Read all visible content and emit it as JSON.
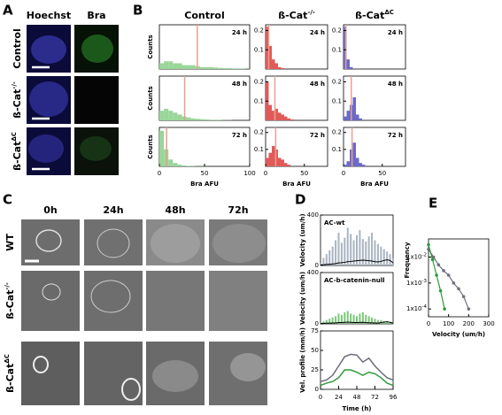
{
  "panel_a": {
    "label": "A",
    "columns": [
      "Hoechst",
      "Bra"
    ],
    "rows": [
      {
        "base": "Control"
      },
      {
        "base": "ß-Cat",
        "sup": "-/-"
      },
      {
        "base": "ß-Cat",
        "sup": "ΔC"
      }
    ]
  },
  "panel_b": {
    "label": "B",
    "ylabel": "Counts",
    "xlabel": "Bra AFU",
    "times": [
      "24 h",
      "48 h",
      "72 h"
    ],
    "columns": [
      {
        "title": {
          "base": "Control"
        },
        "color": "#9ad69a",
        "xlim": [
          0,
          100
        ],
        "xticks": [
          0,
          50,
          100
        ],
        "ylim": [
          0,
          0.23
        ],
        "yticks": [],
        "bins": [
          0,
          5,
          10,
          15,
          20,
          25,
          30,
          35,
          40,
          45,
          50,
          55,
          60,
          65,
          70,
          75,
          80,
          85,
          90,
          95,
          100
        ],
        "counts": [
          [
            0.03,
            0.04,
            0.04,
            0.03,
            0.03,
            0.02,
            0.02,
            0.02,
            0.015,
            0.01,
            0.01,
            0.01,
            0.008,
            0.006,
            0.005,
            0.004,
            0.003,
            0.002,
            0.002,
            0.001
          ],
          [
            0.05,
            0.06,
            0.05,
            0.04,
            0.03,
            0.02,
            0.015,
            0.01,
            0.008,
            0.006,
            0.005,
            0.003,
            0.002,
            0.002,
            0.001,
            0.001,
            0,
            0,
            0,
            0
          ],
          [
            0.21,
            0.1,
            0.04,
            0.02,
            0.01,
            0.005,
            0.003,
            0.002,
            0.001,
            0.001,
            0,
            0,
            0,
            0,
            0,
            0,
            0,
            0,
            0,
            0
          ]
        ],
        "means": [
          42,
          28,
          8
        ]
      },
      {
        "title": {
          "base": "ß-Cat",
          "sup": "-/-"
        },
        "color": "#e05a5a",
        "xlim": [
          0,
          80
        ],
        "xticks": [
          0,
          50
        ],
        "ylim": [
          0,
          0.23
        ],
        "yticks": [
          0.1,
          0.2
        ],
        "bins": [
          0,
          4,
          8,
          12,
          16,
          20,
          24,
          28,
          32,
          36,
          40
        ],
        "counts": [
          [
            0.22,
            0.12,
            0.05,
            0.03,
            0.01,
            0.005,
            0,
            0,
            0,
            0
          ],
          [
            0.2,
            0.08,
            0.05,
            0.06,
            0.04,
            0.03,
            0.02,
            0.01,
            0.005,
            0
          ],
          [
            0.05,
            0.08,
            0.12,
            0.1,
            0.05,
            0.04,
            0.02,
            0.01,
            0,
            0
          ]
        ],
        "means": [
          4,
          12,
          13
        ]
      },
      {
        "title": {
          "base": "ß-Cat",
          "sup": "ΔC"
        },
        "color": "#6a6ac8",
        "xlim": [
          0,
          80
        ],
        "xticks": [
          0,
          50
        ],
        "ylim": [
          0,
          0.23
        ],
        "yticks": [
          0.1,
          0.2
        ],
        "bins": [
          0,
          4,
          8,
          12,
          16,
          20,
          24,
          28,
          32,
          36,
          40
        ],
        "counts": [
          [
            0.22,
            0.05,
            0.01,
            0,
            0,
            0,
            0,
            0,
            0,
            0
          ],
          [
            0.02,
            0.05,
            0.08,
            0.12,
            0.03,
            0.01,
            0,
            0,
            0,
            0
          ],
          [
            0.01,
            0.03,
            0.1,
            0.14,
            0.05,
            0.02,
            0.01,
            0,
            0,
            0
          ]
        ],
        "means": [
          3,
          10,
          11
        ]
      }
    ]
  },
  "panel_c": {
    "label": "C",
    "columns": [
      "0h",
      "24h",
      "48h",
      "72h"
    ],
    "rows": [
      {
        "base": "WT"
      },
      {
        "base": "ß-Cat",
        "sup": "-/-"
      },
      {
        "base": "ß-Cat",
        "sup": "ΔC"
      }
    ]
  },
  "panel_d": {
    "label": "D",
    "xlabel": "Time (h)",
    "xlim": [
      0,
      96
    ],
    "xticks": [
      0,
      24,
      48,
      72,
      96
    ],
    "plots": [
      {
        "title": "AC-wt",
        "ylabel": "Velocity (um/h)",
        "ylim": [
          0,
          400
        ],
        "yticks": [
          0,
          400
        ],
        "x": [
          0,
          4,
          8,
          12,
          16,
          20,
          24,
          28,
          32,
          36,
          40,
          44,
          48,
          52,
          56,
          60,
          64,
          68,
          72,
          76,
          80,
          84,
          88,
          92,
          96
        ],
        "series": [
          {
            "style": "spikes",
            "color": "#a9b4c2",
            "values": [
              20,
              60,
              90,
              120,
              150,
              200,
              260,
              180,
              220,
              300,
              250,
              200,
              240,
              280,
              210,
              190,
              230,
              260,
              200,
              170,
              150,
              130,
              110,
              90,
              60
            ]
          },
          {
            "style": "line",
            "color": "#000000",
            "values": [
              5,
              6,
              8,
              10,
              12,
              15,
              20,
              22,
              25,
              30,
              32,
              35,
              38,
              40,
              42,
              40,
              38,
              35,
              30,
              28,
              32,
              40,
              45,
              40,
              20
            ]
          }
        ]
      },
      {
        "title": "AC-b-catenin-null",
        "ylabel": "Velocity (um/h)",
        "ylim": [
          0,
          400
        ],
        "yticks": [
          0,
          400
        ],
        "x": [
          0,
          4,
          8,
          12,
          16,
          20,
          24,
          28,
          32,
          36,
          40,
          44,
          48,
          52,
          56,
          60,
          64,
          68,
          72,
          76,
          80,
          84,
          88,
          92,
          96
        ],
        "series": [
          {
            "style": "spikes",
            "color": "#7ac87a",
            "values": [
              10,
              20,
              30,
              40,
              50,
              60,
              80,
              70,
              90,
              100,
              80,
              70,
              60,
              80,
              90,
              70,
              60,
              50,
              40,
              30,
              30,
              20,
              20,
              10,
              10
            ]
          },
          {
            "style": "line",
            "color": "#000000",
            "values": [
              3,
              4,
              5,
              6,
              7,
              8,
              10,
              10,
              12,
              14,
              12,
              10,
              10,
              11,
              12,
              10,
              9,
              8,
              7,
              6,
              10,
              14,
              16,
              12,
              6
            ]
          }
        ]
      },
      {
        "ylabel": "Vel. profile (mm/h)",
        "ylim": [
          0,
          75
        ],
        "yticks": [
          0,
          25,
          50,
          75
        ],
        "x": [
          0,
          8,
          16,
          24,
          32,
          40,
          48,
          56,
          64,
          72,
          80,
          88,
          96
        ],
        "series": [
          {
            "style": "line",
            "color": "#6b6b7a",
            "values": [
              10,
              12,
              18,
              30,
              42,
              45,
              44,
              35,
              40,
              30,
              22,
              15,
              12
            ]
          },
          {
            "style": "line",
            "color": "#2e9a3e",
            "values": [
              5,
              8,
              10,
              15,
              25,
              25,
              22,
              18,
              22,
              20,
              15,
              8,
              5
            ]
          }
        ]
      }
    ]
  },
  "panel_e": {
    "label": "E",
    "ylabel": "Frequency",
    "xlabel": "Velocity (um/h)",
    "xlim": [
      0,
      300
    ],
    "xticks": [
      0,
      100,
      200,
      300
    ],
    "ylim": [
      5e-05,
      0.05
    ],
    "log": true,
    "yticks": [
      {
        "value": 0.01,
        "label": "1x10",
        "exp": "-2"
      },
      {
        "value": 0.001,
        "label": "1x10",
        "exp": "-3"
      },
      {
        "value": 0.0001,
        "label": "1x10",
        "exp": "-4"
      }
    ],
    "series": [
      {
        "color": "#707080",
        "x": [
          0,
          25,
          50,
          75,
          100,
          125,
          150,
          175,
          200
        ],
        "values": [
          0.02,
          0.01,
          0.005,
          0.003,
          0.002,
          0.001,
          0.0006,
          0.0003,
          0.0001
        ]
      },
      {
        "color": "#2e9a3e",
        "x": [
          0,
          20,
          40,
          60,
          80
        ],
        "values": [
          0.03,
          0.008,
          0.002,
          0.0005,
          0.0001
        ]
      }
    ]
  }
}
